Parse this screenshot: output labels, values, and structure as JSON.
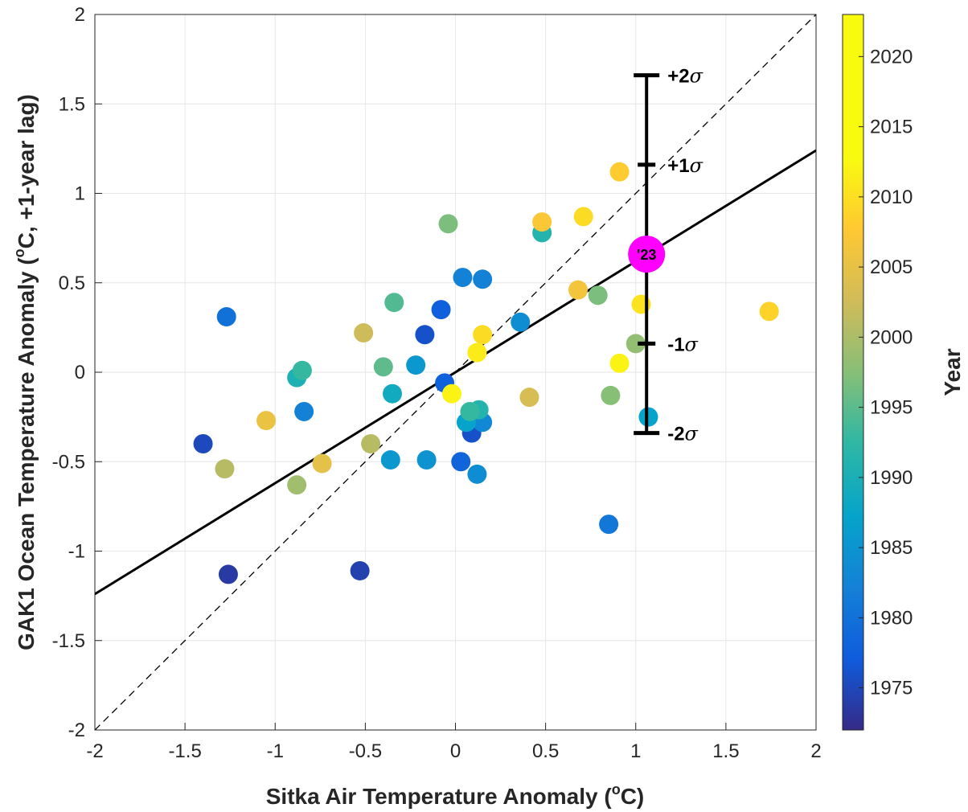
{
  "chart_data": {
    "type": "scatter",
    "xlabel": "Sitka Air Temperature Anomaly (",
    "xlabel_sup": "o",
    "xlabel_end": "C)",
    "ylabel": "GAK1 Ocean Temperature Anomaly (",
    "ylabel_sup": "o",
    "ylabel_end": "C, +1-year lag)",
    "xlim": [
      -2,
      2
    ],
    "ylim": [
      -2,
      2
    ],
    "x_ticks": [
      "-2",
      "-1.5",
      "-1",
      "-0.5",
      "0",
      "0.5",
      "1",
      "1.5",
      "2"
    ],
    "y_ticks": [
      "-2",
      "-1.5",
      "-1",
      "-0.5",
      "0",
      "0.5",
      "1",
      "1.5",
      "2"
    ],
    "grid": true,
    "colorbar": {
      "label": "Year",
      "range": [
        1972,
        2023
      ],
      "ticks": [
        "1975",
        "1980",
        "1985",
        "1990",
        "1995",
        "2000",
        "2005",
        "2010",
        "2015",
        "2020"
      ],
      "colormap": "parula"
    },
    "fit_line": {
      "slope": 0.62,
      "intercept": 0.0
    },
    "identity_line": {
      "slope": 1,
      "intercept": 0,
      "style": "dashed"
    },
    "highlight": {
      "label": "'23",
      "x": 1.06,
      "y": 0.66,
      "color": "#ff00ff"
    },
    "sigma_bar": {
      "x": 1.06,
      "levels": [
        {
          "label": "+2",
          "y": 1.66
        },
        {
          "label": "+1",
          "y": 1.16
        },
        {
          "label": "-1",
          "y": 0.16
        },
        {
          "label": "-2",
          "y": -0.34
        }
      ],
      "sigma_symbol": "σ"
    },
    "points": [
      {
        "x": -1.26,
        "y": -1.13,
        "year": 1974
      },
      {
        "x": -1.4,
        "y": -0.4,
        "year": 1976
      },
      {
        "x": -0.53,
        "y": -1.11,
        "year": 1975
      },
      {
        "x": 0.09,
        "y": -0.34,
        "year": 1977
      },
      {
        "x": -0.17,
        "y": 0.21,
        "year": 1977
      },
      {
        "x": -0.08,
        "y": 0.35,
        "year": 1979
      },
      {
        "x": -0.06,
        "y": -0.06,
        "year": 1979
      },
      {
        "x": 0.03,
        "y": -0.5,
        "year": 1980
      },
      {
        "x": -1.27,
        "y": 0.31,
        "year": 1982
      },
      {
        "x": 0.85,
        "y": -0.85,
        "year": 1983
      },
      {
        "x": -0.84,
        "y": -0.22,
        "year": 1985
      },
      {
        "x": 0.04,
        "y": 0.53,
        "year": 1985
      },
      {
        "x": 0.15,
        "y": 0.52,
        "year": 1985
      },
      {
        "x": 0.15,
        "y": -0.28,
        "year": 1986
      },
      {
        "x": 0.12,
        "y": -0.57,
        "year": 1987
      },
      {
        "x": 0.36,
        "y": 0.28,
        "year": 1987
      },
      {
        "x": -0.16,
        "y": -0.49,
        "year": 1988
      },
      {
        "x": -0.22,
        "y": 0.04,
        "year": 1989
      },
      {
        "x": -0.36,
        "y": -0.49,
        "year": 1989
      },
      {
        "x": 0.06,
        "y": -0.28,
        "year": 1991
      },
      {
        "x": 1.07,
        "y": -0.25,
        "year": 1991
      },
      {
        "x": -0.35,
        "y": -0.12,
        "year": 1993
      },
      {
        "x": -0.88,
        "y": -0.03,
        "year": 1995
      },
      {
        "x": 0.13,
        "y": -0.21,
        "year": 1996
      },
      {
        "x": 0.48,
        "y": 0.78,
        "year": 1996
      },
      {
        "x": -0.85,
        "y": 0.01,
        "year": 1998
      },
      {
        "x": 0.08,
        "y": -0.22,
        "year": 1998
      },
      {
        "x": -0.34,
        "y": 0.39,
        "year": 2000
      },
      {
        "x": -0.4,
        "y": 0.03,
        "year": 2001
      },
      {
        "x": -0.04,
        "y": 0.83,
        "year": 2003
      },
      {
        "x": 0.79,
        "y": 0.43,
        "year": 2003
      },
      {
        "x": 0.86,
        "y": -0.13,
        "year": 2004
      },
      {
        "x": 1.0,
        "y": 0.16,
        "year": 2005
      },
      {
        "x": -0.88,
        "y": -0.63,
        "year": 2006
      },
      {
        "x": -1.28,
        "y": -0.54,
        "year": 2008
      },
      {
        "x": -0.47,
        "y": -0.4,
        "year": 2008
      },
      {
        "x": -0.51,
        "y": 0.22,
        "year": 2010
      },
      {
        "x": 0.41,
        "y": -0.14,
        "year": 2011
      },
      {
        "x": -0.74,
        "y": -0.51,
        "year": 2013
      },
      {
        "x": -1.05,
        "y": -0.27,
        "year": 2014
      },
      {
        "x": 0.68,
        "y": 0.46,
        "year": 2015
      },
      {
        "x": 0.48,
        "y": 0.84,
        "year": 2016
      },
      {
        "x": 0.91,
        "y": 1.12,
        "year": 2017
      },
      {
        "x": 1.74,
        "y": 0.34,
        "year": 2018
      },
      {
        "x": 0.15,
        "y": 0.21,
        "year": 2019
      },
      {
        "x": 0.71,
        "y": 0.87,
        "year": 2019
      },
      {
        "x": 1.03,
        "y": 0.38,
        "year": 2020
      },
      {
        "x": 0.12,
        "y": 0.11,
        "year": 2021
      },
      {
        "x": -0.02,
        "y": -0.12,
        "year": 2022
      },
      {
        "x": 0.91,
        "y": 0.05,
        "year": 2022
      }
    ]
  }
}
